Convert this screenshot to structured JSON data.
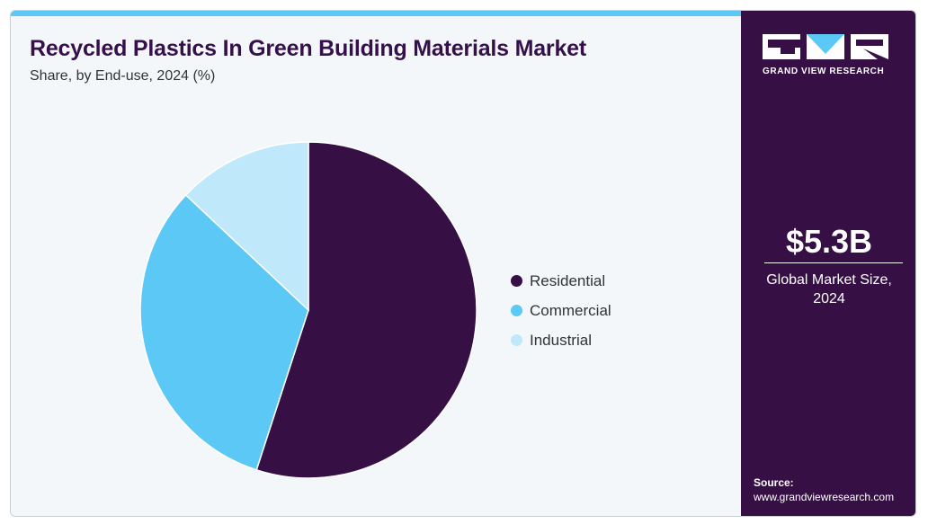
{
  "header": {
    "title": "Recycled Plastics In Green Building Materials Market",
    "subtitle": "Share, by End-use, 2024 (%)"
  },
  "chart_data": {
    "type": "pie",
    "categories": [
      "Residential",
      "Commercial",
      "Industrial"
    ],
    "values": [
      55,
      32,
      13
    ],
    "colors": [
      "#360f45",
      "#5cc8f6",
      "#bfe9fa"
    ],
    "title": "Recycled Plastics In Green Building Materials Market",
    "subtitle": "Share, by End-use, 2024 (%)",
    "legend_position": "right"
  },
  "sidebar": {
    "brand": "GRAND VIEW RESEARCH",
    "market_value": "$5.3B",
    "market_label": "Global Market Size, 2024",
    "source_label": "Source:",
    "source_url": "www.grandviewresearch.com"
  },
  "colors": {
    "accent_strip": "#5cc8f6",
    "sidebar_bg": "#360f45",
    "panel_bg": "#f3f7fa"
  }
}
